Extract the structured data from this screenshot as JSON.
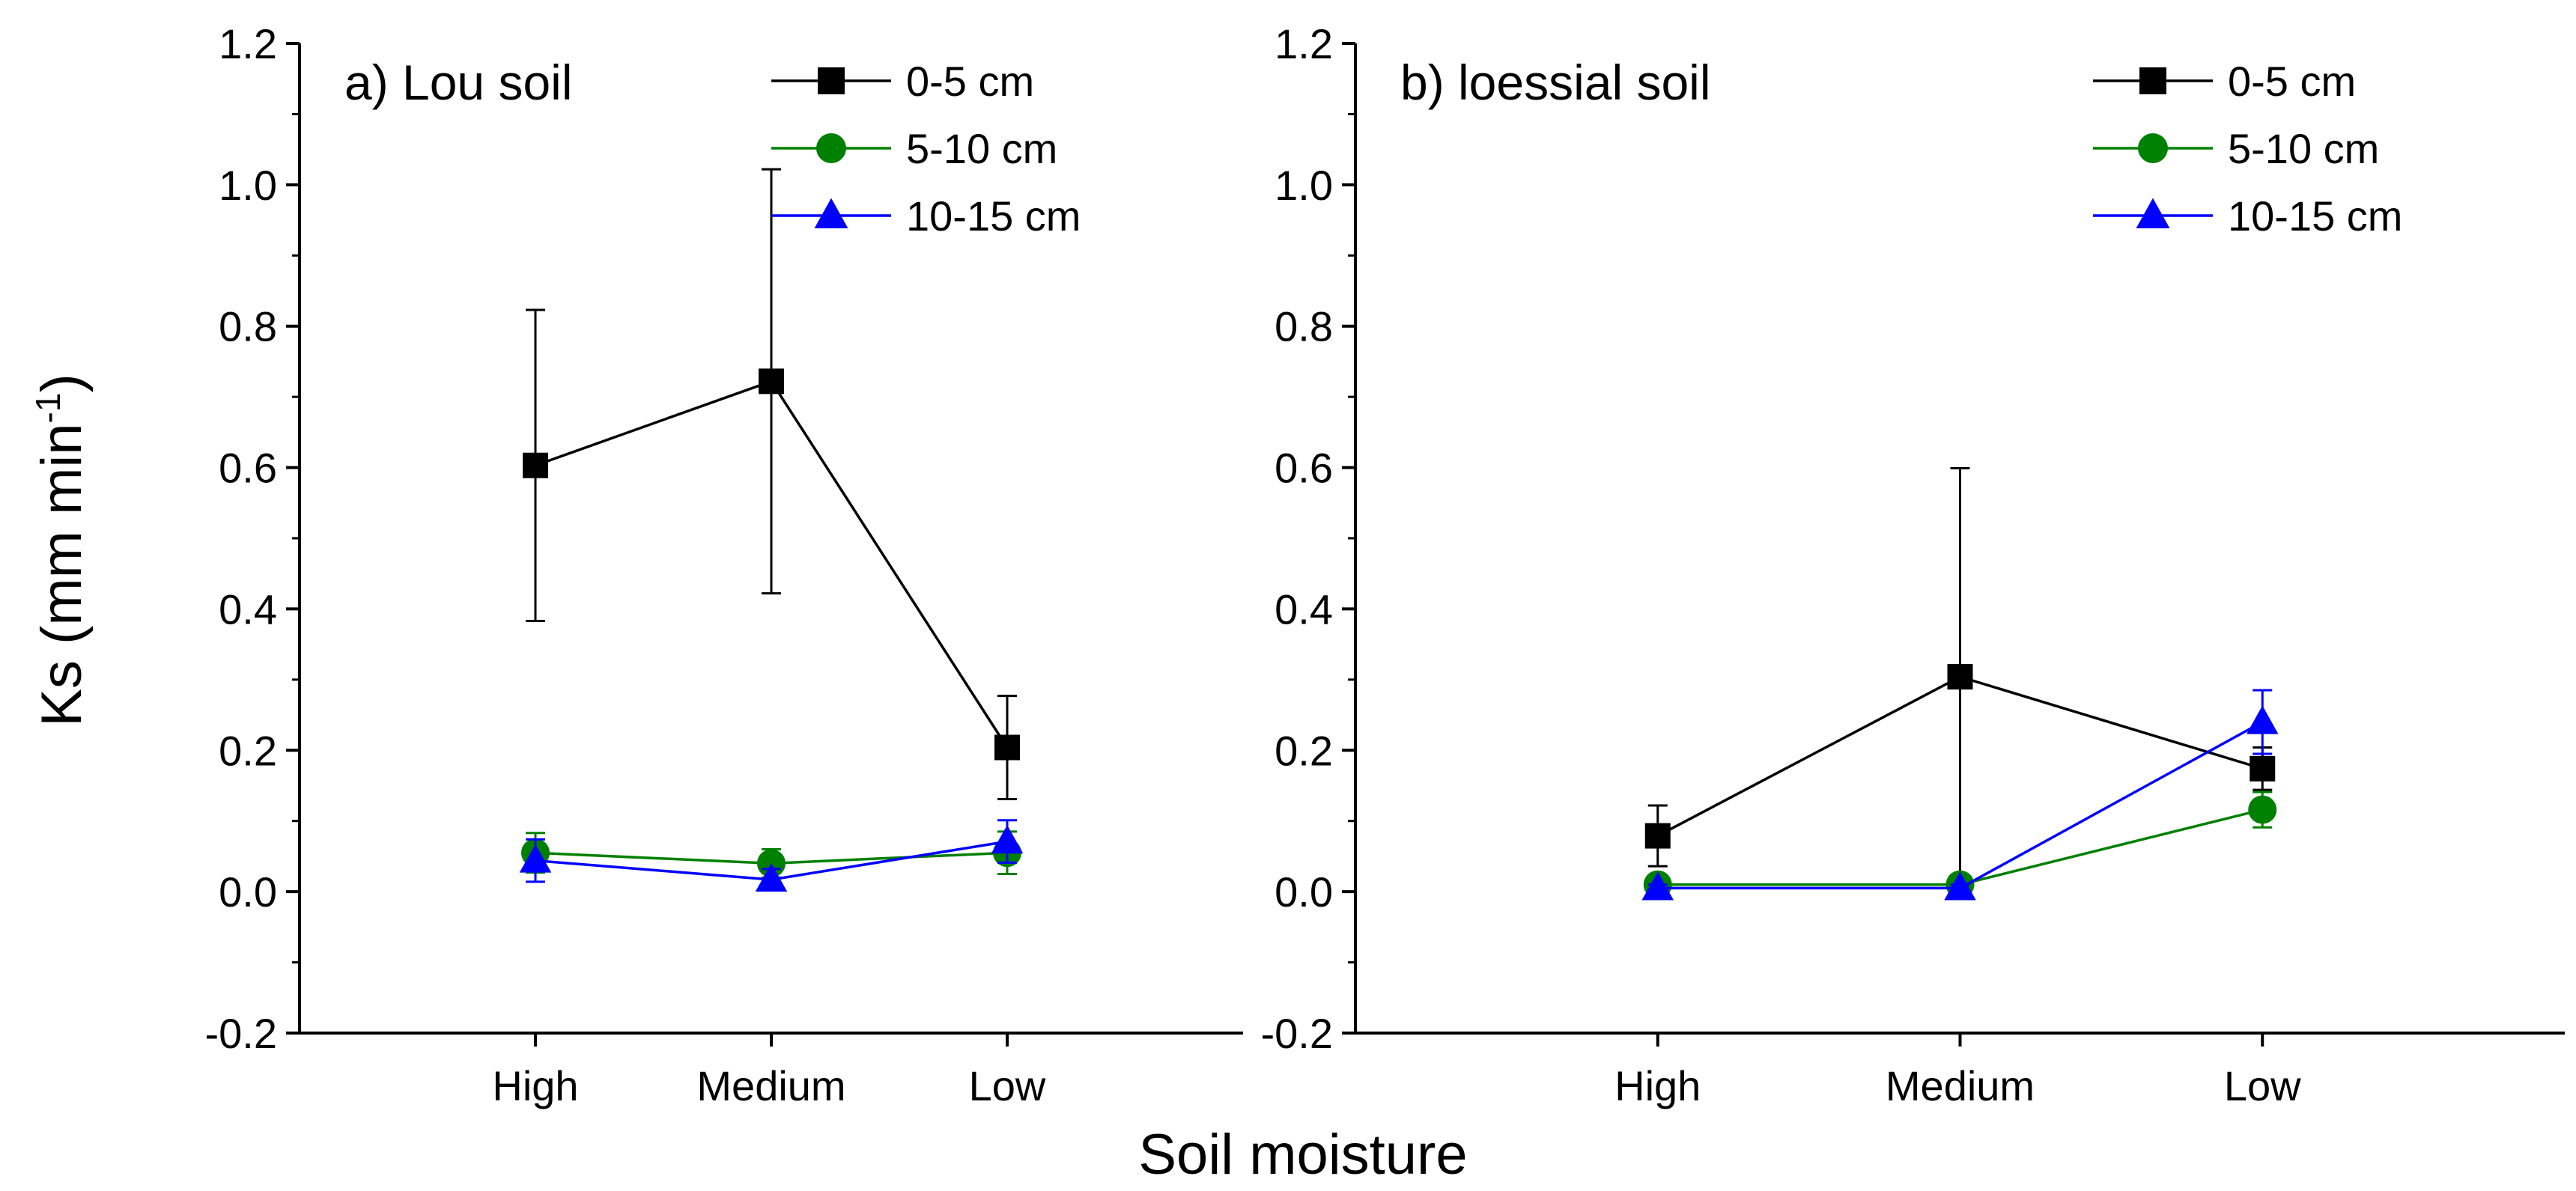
{
  "figure": {
    "ylabel_main": "Ks (mm min",
    "ylabel_sup": "-1",
    "ylabel_close": ")",
    "xlabel": "Soil moisture"
  },
  "chart_data": [
    {
      "type": "line",
      "title": "a) Lou soil",
      "categories": [
        "High",
        "Medium",
        "Low"
      ],
      "ylim": [
        -0.2,
        1.2
      ],
      "yticks": [
        "-0.2",
        "0.0",
        "0.2",
        "0.4",
        "0.6",
        "0.8",
        "1.0",
        "1.2"
      ],
      "ylabel": "Ks (mm min-1)",
      "xlabel": "Soil moisture",
      "legend_position": "top-right",
      "series": [
        {
          "name": "0-5 cm",
          "color": "#000000",
          "marker": "square",
          "values": [
            0.603,
            0.722,
            0.204
          ],
          "errors": [
            0.22,
            0.3,
            0.073
          ]
        },
        {
          "name": "5-10 cm",
          "color": "#008000",
          "marker": "circle",
          "values": [
            0.055,
            0.04,
            0.055
          ],
          "errors": [
            0.028,
            0.02,
            0.03
          ]
        },
        {
          "name": "10-15 cm",
          "color": "#0000ff",
          "marker": "triangle",
          "values": [
            0.044,
            0.017,
            0.071
          ],
          "errors": [
            0.03,
            0.015,
            0.03
          ]
        }
      ]
    },
    {
      "type": "line",
      "title": "b) loessial soil",
      "categories": [
        "High",
        "Medium",
        "Low"
      ],
      "ylim": [
        -0.2,
        1.2
      ],
      "yticks": [
        "-0.2",
        "0.0",
        "0.2",
        "0.4",
        "0.6",
        "0.8",
        "1.0",
        "1.2"
      ],
      "ylabel": "",
      "xlabel": "Soil moisture",
      "legend_position": "top-right",
      "series": [
        {
          "name": "0-5 cm",
          "color": "#000000",
          "marker": "square",
          "values": [
            0.079,
            0.304,
            0.174
          ],
          "errors": [
            0.043,
            0.295,
            0.03
          ]
        },
        {
          "name": "5-10 cm",
          "color": "#008000",
          "marker": "circle",
          "values": [
            0.01,
            0.01,
            0.116
          ],
          "errors": [
            0.005,
            0.005,
            0.025
          ]
        },
        {
          "name": "10-15 cm",
          "color": "#0000ff",
          "marker": "triangle",
          "values": [
            0.005,
            0.005,
            0.24
          ],
          "errors": [
            0.005,
            0.005,
            0.045
          ]
        }
      ]
    }
  ]
}
